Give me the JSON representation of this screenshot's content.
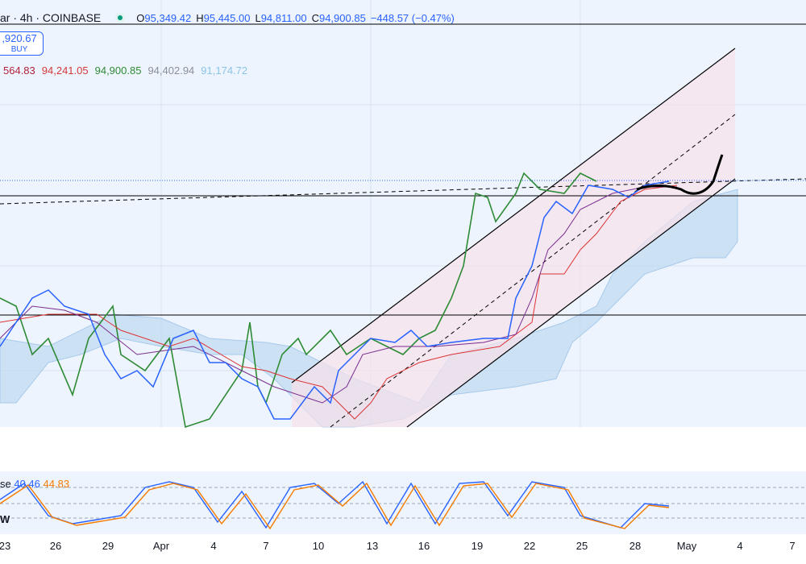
{
  "header": {
    "symbol": "ar · 4h · COINBASE",
    "ohlc": [
      {
        "key": "O",
        "value": "95,349.42"
      },
      {
        "key": "H",
        "value": "95,445.00"
      },
      {
        "key": "L",
        "value": "94,811.00"
      },
      {
        "key": "C",
        "value": "94,900.85"
      }
    ],
    "change": "−448.57 (−0.47%)"
  },
  "buy_button": {
    "price": ",920.67",
    "label": "BUY"
  },
  "indicator_values": [
    "564.83",
    "94,241.05",
    "94,900.85",
    "94,402.94",
    "91,174.72"
  ],
  "stochastic": {
    "label": "se",
    "k": "40.46",
    "d": "44.83",
    "side_label": "W"
  },
  "x_axis": [
    "23",
    "26",
    "29",
    "Apr",
    "4",
    "7",
    "10",
    "13",
    "16",
    "19",
    "22",
    "25",
    "28",
    "May",
    "4",
    "7"
  ]
}
